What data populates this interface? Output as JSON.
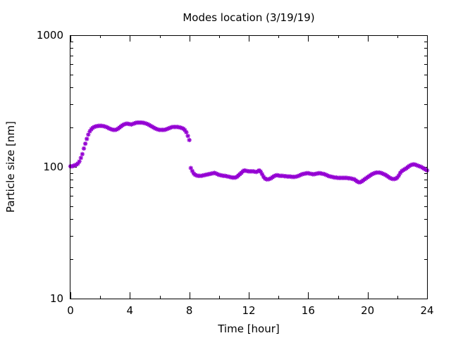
{
  "chart_data": {
    "type": "scatter",
    "title": "Modes location (3/19/19)",
    "xlabel": "Time [hour]",
    "ylabel": "Particle size [nm]",
    "xlim": [
      0,
      24
    ],
    "ylim": [
      10,
      1000
    ],
    "yscale": "log",
    "grid": false,
    "legend": "none",
    "x_ticks": [
      0,
      4,
      8,
      12,
      16,
      20,
      24
    ],
    "x_tick_labels": [
      "0",
      "4",
      "8",
      "12",
      "16",
      "20",
      "24"
    ],
    "y_ticks": [
      10,
      100,
      1000
    ],
    "y_tick_labels": [
      "10",
      "100",
      "1000"
    ],
    "series": [
      {
        "color": "#9400d3",
        "marker": "star",
        "points": [
          [
            0.0,
            101
          ],
          [
            0.1,
            101
          ],
          [
            0.2,
            102
          ],
          [
            0.3,
            103
          ],
          [
            0.4,
            104
          ],
          [
            0.5,
            106
          ],
          [
            0.6,
            110
          ],
          [
            0.7,
            117
          ],
          [
            0.8,
            125
          ],
          [
            0.9,
            138
          ],
          [
            1.0,
            150
          ],
          [
            1.1,
            163
          ],
          [
            1.2,
            176
          ],
          [
            1.3,
            186
          ],
          [
            1.4,
            193
          ],
          [
            1.5,
            198
          ],
          [
            1.6,
            201
          ],
          [
            1.7,
            203
          ],
          [
            1.8,
            204
          ],
          [
            1.9,
            205
          ],
          [
            2.0,
            205
          ],
          [
            2.1,
            205
          ],
          [
            2.2,
            204
          ],
          [
            2.3,
            203
          ],
          [
            2.4,
            201
          ],
          [
            2.5,
            199
          ],
          [
            2.6,
            196
          ],
          [
            2.7,
            194
          ],
          [
            2.8,
            192
          ],
          [
            2.9,
            191
          ],
          [
            3.0,
            191
          ],
          [
            3.1,
            192
          ],
          [
            3.2,
            195
          ],
          [
            3.3,
            199
          ],
          [
            3.4,
            203
          ],
          [
            3.5,
            207
          ],
          [
            3.6,
            210
          ],
          [
            3.7,
            212
          ],
          [
            3.8,
            213
          ],
          [
            3.9,
            212
          ],
          [
            4.0,
            211
          ],
          [
            4.1,
            210
          ],
          [
            4.2,
            212
          ],
          [
            4.3,
            214
          ],
          [
            4.4,
            216
          ],
          [
            4.5,
            217
          ],
          [
            4.6,
            217
          ],
          [
            4.7,
            217
          ],
          [
            4.8,
            217
          ],
          [
            4.9,
            216
          ],
          [
            5.0,
            215
          ],
          [
            5.1,
            213
          ],
          [
            5.2,
            211
          ],
          [
            5.3,
            208
          ],
          [
            5.4,
            205
          ],
          [
            5.5,
            202
          ],
          [
            5.6,
            199
          ],
          [
            5.7,
            196
          ],
          [
            5.8,
            194
          ],
          [
            5.9,
            192
          ],
          [
            6.0,
            191
          ],
          [
            6.1,
            191
          ],
          [
            6.2,
            191
          ],
          [
            6.3,
            191
          ],
          [
            6.4,
            192
          ],
          [
            6.5,
            194
          ],
          [
            6.6,
            196
          ],
          [
            6.7,
            198
          ],
          [
            6.8,
            200
          ],
          [
            6.9,
            201
          ],
          [
            7.0,
            201
          ],
          [
            7.1,
            201
          ],
          [
            7.2,
            201
          ],
          [
            7.3,
            200
          ],
          [
            7.4,
            199
          ],
          [
            7.5,
            197
          ],
          [
            7.6,
            195
          ],
          [
            7.7,
            190
          ],
          [
            7.8,
            183
          ],
          [
            7.9,
            172
          ],
          [
            8.0,
            160
          ],
          [
            8.1,
            98
          ],
          [
            8.2,
            93
          ],
          [
            8.3,
            89
          ],
          [
            8.4,
            87
          ],
          [
            8.5,
            86
          ],
          [
            8.6,
            85.5
          ],
          [
            8.7,
            85.5
          ],
          [
            8.8,
            85.5
          ],
          [
            8.9,
            86
          ],
          [
            9.0,
            86.5
          ],
          [
            9.1,
            87
          ],
          [
            9.2,
            87.5
          ],
          [
            9.3,
            88
          ],
          [
            9.4,
            88.5
          ],
          [
            9.5,
            89
          ],
          [
            9.6,
            89.5
          ],
          [
            9.7,
            90
          ],
          [
            9.8,
            89
          ],
          [
            9.9,
            88
          ],
          [
            10.0,
            87
          ],
          [
            10.1,
            86.5
          ],
          [
            10.2,
            86
          ],
          [
            10.3,
            85.5
          ],
          [
            10.4,
            85.5
          ],
          [
            10.5,
            85
          ],
          [
            10.6,
            84.5
          ],
          [
            10.7,
            84
          ],
          [
            10.8,
            83.5
          ],
          [
            10.9,
            83
          ],
          [
            11.0,
            83
          ],
          [
            11.1,
            83
          ],
          [
            11.2,
            84
          ],
          [
            11.3,
            86
          ],
          [
            11.4,
            88
          ],
          [
            11.5,
            90
          ],
          [
            11.6,
            92.5
          ],
          [
            11.7,
            94
          ],
          [
            11.8,
            93.5
          ],
          [
            11.9,
            93
          ],
          [
            12.0,
            92.5
          ],
          [
            12.1,
            92.5
          ],
          [
            12.2,
            92.5
          ],
          [
            12.3,
            92.5
          ],
          [
            12.4,
            92
          ],
          [
            12.5,
            91.5
          ],
          [
            12.6,
            92.5
          ],
          [
            12.7,
            94
          ],
          [
            12.8,
            92
          ],
          [
            12.9,
            88
          ],
          [
            13.0,
            84
          ],
          [
            13.1,
            81.5
          ],
          [
            13.2,
            80.5
          ],
          [
            13.3,
            80.5
          ],
          [
            13.4,
            81
          ],
          [
            13.5,
            82
          ],
          [
            13.6,
            83.5
          ],
          [
            13.7,
            85
          ],
          [
            13.8,
            86
          ],
          [
            13.9,
            86.5
          ],
          [
            14.0,
            86
          ],
          [
            14.1,
            85.5
          ],
          [
            14.2,
            85.5
          ],
          [
            14.3,
            85.5
          ],
          [
            14.4,
            85
          ],
          [
            14.5,
            85
          ],
          [
            14.6,
            84.5
          ],
          [
            14.7,
            84.5
          ],
          [
            14.8,
            84.5
          ],
          [
            14.9,
            84
          ],
          [
            15.0,
            84
          ],
          [
            15.1,
            84
          ],
          [
            15.2,
            84.5
          ],
          [
            15.3,
            85
          ],
          [
            15.4,
            86
          ],
          [
            15.5,
            87
          ],
          [
            15.6,
            88
          ],
          [
            15.7,
            88.5
          ],
          [
            15.8,
            89
          ],
          [
            15.9,
            89.5
          ],
          [
            16.0,
            89.5
          ],
          [
            16.1,
            89
          ],
          [
            16.2,
            88.5
          ],
          [
            16.3,
            88
          ],
          [
            16.4,
            88
          ],
          [
            16.5,
            88.5
          ],
          [
            16.6,
            89
          ],
          [
            16.7,
            89.5
          ],
          [
            16.8,
            89.5
          ],
          [
            16.9,
            89
          ],
          [
            17.0,
            88.5
          ],
          [
            17.1,
            88
          ],
          [
            17.2,
            87
          ],
          [
            17.3,
            86
          ],
          [
            17.4,
            85
          ],
          [
            17.5,
            84.5
          ],
          [
            17.6,
            84
          ],
          [
            17.7,
            83.5
          ],
          [
            17.8,
            83
          ],
          [
            17.9,
            83
          ],
          [
            18.0,
            82.5
          ],
          [
            18.1,
            82.5
          ],
          [
            18.2,
            82.5
          ],
          [
            18.3,
            82.5
          ],
          [
            18.4,
            82.5
          ],
          [
            18.5,
            82.5
          ],
          [
            18.6,
            82.5
          ],
          [
            18.7,
            82
          ],
          [
            18.8,
            82
          ],
          [
            18.9,
            81.5
          ],
          [
            19.0,
            81
          ],
          [
            19.1,
            80.5
          ],
          [
            19.2,
            79
          ],
          [
            19.3,
            77.5
          ],
          [
            19.4,
            76.5
          ],
          [
            19.5,
            76.5
          ],
          [
            19.6,
            77.5
          ],
          [
            19.7,
            79
          ],
          [
            19.8,
            80.5
          ],
          [
            19.9,
            82
          ],
          [
            20.0,
            83.5
          ],
          [
            20.1,
            85
          ],
          [
            20.2,
            86.5
          ],
          [
            20.3,
            88
          ],
          [
            20.4,
            89
          ],
          [
            20.5,
            90
          ],
          [
            20.6,
            90.5
          ],
          [
            20.7,
            90.5
          ],
          [
            20.8,
            90.5
          ],
          [
            20.9,
            90
          ],
          [
            21.0,
            89
          ],
          [
            21.1,
            88
          ],
          [
            21.2,
            87
          ],
          [
            21.3,
            85.5
          ],
          [
            21.4,
            84
          ],
          [
            21.5,
            82.5
          ],
          [
            21.6,
            81.5
          ],
          [
            21.7,
            81
          ],
          [
            21.8,
            81
          ],
          [
            21.9,
            81.5
          ],
          [
            22.0,
            83
          ],
          [
            22.1,
            86
          ],
          [
            22.2,
            90
          ],
          [
            22.3,
            93
          ],
          [
            22.4,
            94.5
          ],
          [
            22.5,
            96
          ],
          [
            22.6,
            97.5
          ],
          [
            22.7,
            99.5
          ],
          [
            22.8,
            101.5
          ],
          [
            22.9,
            103
          ],
          [
            23.0,
            104
          ],
          [
            23.1,
            104.5
          ],
          [
            23.2,
            104
          ],
          [
            23.3,
            103
          ],
          [
            23.4,
            102
          ],
          [
            23.5,
            101
          ],
          [
            23.6,
            100
          ],
          [
            23.7,
            98.5
          ],
          [
            23.8,
            97
          ],
          [
            23.9,
            95.5
          ],
          [
            24.0,
            94
          ]
        ]
      }
    ]
  }
}
